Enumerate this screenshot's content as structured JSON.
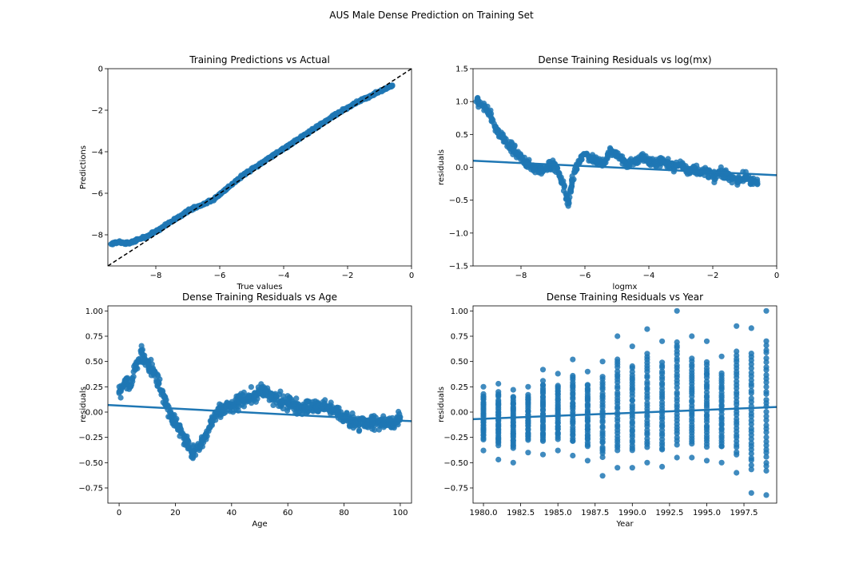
{
  "figure": {
    "suptitle": "AUS Male Dense Prediction on Training Set"
  },
  "colors": {
    "point": "#1f77b4",
    "line": "#1f77b4",
    "reference": "#000000"
  },
  "chart_data": [
    {
      "type": "scatter",
      "title": "Training Predictions vs Actual",
      "xlabel": "True values",
      "ylabel": "Predictions",
      "xlim": [
        -9.5,
        0
      ],
      "ylim": [
        -9.5,
        0
      ],
      "xticks": [
        "−8",
        "−6",
        "−4",
        "−2",
        "0"
      ],
      "xtick_values": [
        -8,
        -6,
        -4,
        -2,
        0
      ],
      "yticks": [
        "0",
        "−2",
        "−4",
        "−6",
        "−8"
      ],
      "ytick_values": [
        0,
        -2,
        -4,
        -6,
        -8
      ],
      "grid": false,
      "series": [
        {
          "x": [
            -9.4,
            -9.2,
            -9.0,
            -8.8,
            -8.6,
            -8.4,
            -8.2,
            -8.0,
            -7.8,
            -7.6,
            -7.4,
            -7.2,
            -7.0,
            -6.8,
            -6.6,
            -6.4,
            -6.2,
            -6.0,
            -5.8,
            -5.6,
            -5.4,
            -5.2,
            -5.0,
            -4.8,
            -4.6,
            -4.4,
            -4.2,
            -4.0,
            -3.8,
            -3.6,
            -3.4,
            -3.2,
            -3.0,
            -2.8,
            -2.6,
            -2.4,
            -2.2,
            -2.0,
            -1.8,
            -1.6,
            -1.4,
            -1.2,
            -1.0,
            -0.8,
            -0.6
          ],
          "y": [
            -8.45,
            -8.35,
            -8.4,
            -8.4,
            -8.25,
            -8.15,
            -8.0,
            -7.85,
            -7.65,
            -7.45,
            -7.25,
            -7.05,
            -6.85,
            -6.7,
            -6.6,
            -6.45,
            -6.3,
            -6.05,
            -5.8,
            -5.55,
            -5.3,
            -5.05,
            -4.85,
            -4.65,
            -4.45,
            -4.25,
            -4.05,
            -3.85,
            -3.65,
            -3.45,
            -3.25,
            -3.05,
            -2.85,
            -2.65,
            -2.45,
            -2.25,
            -2.05,
            -1.9,
            -1.7,
            -1.55,
            -1.4,
            -1.25,
            -1.1,
            -0.95,
            -0.8
          ]
        }
      ],
      "reference_line": {
        "x": [
          -9.5,
          0
        ],
        "y": [
          -9.5,
          0
        ],
        "style": "dashed"
      }
    },
    {
      "type": "scatter",
      "title": "Dense Training Residuals vs log(mx)",
      "xlabel": "logmx",
      "ylabel": "residuals",
      "xlim": [
        -9.5,
        0
      ],
      "ylim": [
        -1.5,
        1.5
      ],
      "xticks": [
        "−8",
        "−6",
        "−4",
        "−2",
        "0"
      ],
      "xtick_values": [
        -8,
        -6,
        -4,
        -2,
        0
      ],
      "yticks": [
        "1.5",
        "1.0",
        "0.5",
        "0.0",
        "−0.5",
        "−1.0",
        "−1.5"
      ],
      "ytick_values": [
        1.5,
        1.0,
        0.5,
        0.0,
        -0.5,
        -1.0,
        -1.5
      ],
      "grid": false,
      "series": [
        {
          "x": [
            -9.4,
            -9.2,
            -9.0,
            -8.8,
            -8.6,
            -8.4,
            -8.2,
            -8.0,
            -7.8,
            -7.6,
            -7.4,
            -7.2,
            -7.0,
            -6.8,
            -6.6,
            -6.5,
            -6.4,
            -6.2,
            -6.0,
            -5.8,
            -5.6,
            -5.4,
            -5.2,
            -5.0,
            -4.8,
            -4.6,
            -4.4,
            -4.2,
            -4.0,
            -3.8,
            -3.6,
            -3.4,
            -3.2,
            -3.0,
            -2.8,
            -2.6,
            -2.4,
            -2.2,
            -2.0,
            -1.8,
            -1.6,
            -1.4,
            -1.2,
            -1.0,
            -0.8,
            -0.6
          ],
          "y": [
            1.0,
            0.95,
            0.85,
            0.6,
            0.45,
            0.35,
            0.25,
            0.15,
            0.05,
            0.0,
            -0.05,
            0.0,
            0.05,
            -0.1,
            -0.4,
            -0.55,
            -0.2,
            0.1,
            0.2,
            0.15,
            0.1,
            0.05,
            0.25,
            0.2,
            0.1,
            0.05,
            0.1,
            0.15,
            0.1,
            0.05,
            0.1,
            0.05,
            0.0,
            0.05,
            -0.05,
            0.0,
            -0.1,
            -0.05,
            -0.15,
            -0.1,
            -0.1,
            -0.15,
            -0.2,
            -0.15,
            -0.2,
            -0.25
          ]
        }
      ],
      "regression_line": {
        "x": [
          -9.5,
          0
        ],
        "y": [
          0.1,
          -0.12
        ]
      }
    },
    {
      "type": "scatter",
      "title": "Dense Training  Residuals vs Age",
      "xlabel": "Age",
      "ylabel": "residuals",
      "xlim": [
        -4,
        104
      ],
      "ylim": [
        -0.9,
        1.05
      ],
      "xticks": [
        "0",
        "20",
        "40",
        "60",
        "80",
        "100"
      ],
      "xtick_values": [
        0,
        20,
        40,
        60,
        80,
        100
      ],
      "yticks": [
        "1.00",
        "0.75",
        "0.50",
        "0.25",
        "0.00",
        "−0.25",
        "−0.50",
        "−0.75"
      ],
      "ytick_values": [
        1.0,
        0.75,
        0.5,
        0.25,
        0.0,
        -0.25,
        -0.5,
        -0.75
      ],
      "grid": false,
      "series": [
        {
          "x": [
            0,
            2,
            4,
            6,
            8,
            10,
            12,
            14,
            16,
            18,
            20,
            22,
            24,
            26,
            28,
            30,
            32,
            34,
            36,
            38,
            40,
            42,
            44,
            46,
            48,
            50,
            52,
            54,
            56,
            58,
            60,
            62,
            64,
            66,
            68,
            70,
            72,
            74,
            76,
            78,
            80,
            82,
            84,
            86,
            88,
            90,
            92,
            94,
            96,
            98,
            100
          ],
          "y": [
            0.2,
            0.3,
            0.25,
            0.45,
            0.6,
            0.5,
            0.4,
            0.3,
            0.15,
            0.0,
            -0.1,
            -0.2,
            -0.3,
            -0.4,
            -0.35,
            -0.3,
            -0.15,
            -0.05,
            0.0,
            0.05,
            0.05,
            0.1,
            0.12,
            0.15,
            0.15,
            0.2,
            0.2,
            0.15,
            0.12,
            0.1,
            0.1,
            0.08,
            0.05,
            0.05,
            0.05,
            0.05,
            0.05,
            0.05,
            0.03,
            0.0,
            -0.05,
            -0.08,
            -0.1,
            -0.1,
            -0.12,
            -0.1,
            -0.1,
            -0.12,
            -0.1,
            -0.1,
            -0.05
          ]
        }
      ],
      "regression_line": {
        "x": [
          -4,
          104
        ],
        "y": [
          0.07,
          -0.09
        ]
      }
    },
    {
      "type": "scatter",
      "title": "Dense Training  Residuals vs Year",
      "xlabel": "Year",
      "ylabel": "residuals",
      "xlim": [
        1979.3,
        1999.7
      ],
      "ylim": [
        -0.9,
        1.05
      ],
      "xticks": [
        "1980.0",
        "1982.5",
        "1985.0",
        "1987.5",
        "1990.0",
        "1992.5",
        "1995.0",
        "1997.5"
      ],
      "xtick_values": [
        1980.0,
        1982.5,
        1985.0,
        1987.5,
        1990.0,
        1992.5,
        1995.0,
        1997.5
      ],
      "yticks": [
        "1.00",
        "0.75",
        "0.50",
        "0.25",
        "0.00",
        "−0.25",
        "−0.50",
        "−0.75"
      ],
      "ytick_values": [
        1.0,
        0.75,
        0.5,
        0.25,
        0.0,
        -0.25,
        -0.5,
        -0.75
      ],
      "grid": false,
      "series": [
        {
          "x": [
            1980,
            1981,
            1982,
            1983,
            1984,
            1985,
            1986,
            1987,
            1988,
            1989,
            1990,
            1991,
            1992,
            1993,
            1994,
            1995,
            1996,
            1997,
            1998,
            1999
          ],
          "y_max": [
            0.25,
            0.28,
            0.22,
            0.25,
            0.42,
            0.38,
            0.52,
            0.4,
            0.5,
            0.75,
            0.65,
            0.82,
            0.7,
            1.0,
            0.75,
            0.7,
            0.55,
            0.85,
            0.83,
            1.0
          ],
          "y_min": [
            -0.38,
            -0.47,
            -0.5,
            -0.4,
            -0.42,
            -0.38,
            -0.43,
            -0.48,
            -0.63,
            -0.55,
            -0.55,
            -0.5,
            -0.54,
            -0.45,
            -0.45,
            -0.48,
            -0.5,
            -0.6,
            -0.8,
            -0.82
          ]
        }
      ],
      "regression_line": {
        "x": [
          1979.3,
          1999.7
        ],
        "y": [
          -0.07,
          0.05
        ]
      }
    }
  ]
}
